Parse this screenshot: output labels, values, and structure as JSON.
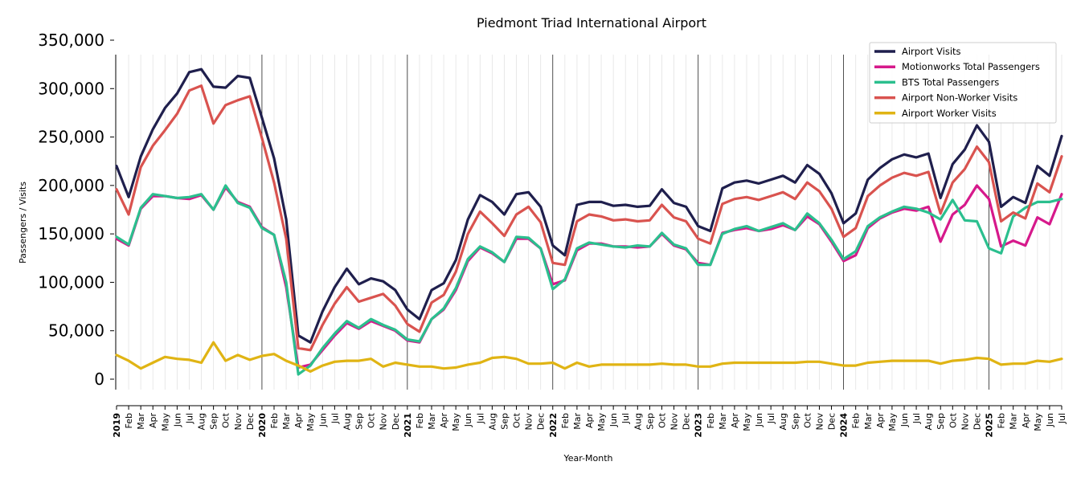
{
  "chart_data": {
    "type": "line",
    "title": "Piedmont Triad International Airport",
    "xlabel": "Year-Month",
    "ylabel": "Passengers / Visits",
    "ylim": [
      0,
      350000
    ],
    "y_ticks": [
      0,
      50000,
      100000,
      150000,
      200000,
      250000,
      300000,
      350000
    ],
    "y_tick_labels": [
      "0",
      "50,000",
      "100,000",
      "150,000",
      "200,000",
      "250,000",
      "300,000",
      "350,000"
    ],
    "grid": "vertical monthly minor gridlines, vertical year separators",
    "legend_position": "top-right",
    "x": [
      "2019-01",
      "2019-02",
      "2019-03",
      "2019-04",
      "2019-05",
      "2019-06",
      "2019-07",
      "2019-08",
      "2019-09",
      "2019-10",
      "2019-11",
      "2019-12",
      "2020-01",
      "2020-02",
      "2020-03",
      "2020-04",
      "2020-05",
      "2020-06",
      "2020-07",
      "2020-08",
      "2020-09",
      "2020-10",
      "2020-11",
      "2020-12",
      "2021-01",
      "2021-02",
      "2021-03",
      "2021-04",
      "2021-05",
      "2021-06",
      "2021-07",
      "2021-08",
      "2021-09",
      "2021-10",
      "2021-11",
      "2021-12",
      "2022-01",
      "2022-02",
      "2022-03",
      "2022-04",
      "2022-05",
      "2022-06",
      "2022-07",
      "2022-08",
      "2022-09",
      "2022-10",
      "2022-11",
      "2022-12",
      "2023-01",
      "2023-02",
      "2023-03",
      "2023-04",
      "2023-05",
      "2023-06",
      "2023-07",
      "2023-08",
      "2023-09",
      "2023-10",
      "2023-11",
      "2023-12",
      "2024-01",
      "2024-02",
      "2024-03",
      "2024-04",
      "2024-05",
      "2024-06",
      "2024-07",
      "2024-08",
      "2024-09",
      "2024-10",
      "2024-11",
      "2024-12",
      "2025-01",
      "2025-02",
      "2025-03",
      "2025-04",
      "2025-05",
      "2025-06",
      "2025-07"
    ],
    "x_tick_labels": [
      "2019",
      "Feb",
      "Mar",
      "Apr",
      "May",
      "Jun",
      "Jul",
      "Aug",
      "Sep",
      "Oct",
      "Nov",
      "Dec",
      "2020",
      "Feb",
      "Mar",
      "Apr",
      "May",
      "Jun",
      "Jul",
      "Aug",
      "Sep",
      "Oct",
      "Nov",
      "Dec",
      "2021",
      "Feb",
      "Mar",
      "Apr",
      "May",
      "Jun",
      "Jul",
      "Aug",
      "Sep",
      "Oct",
      "Nov",
      "Dec",
      "2022",
      "Feb",
      "Mar",
      "Apr",
      "May",
      "Jun",
      "Jul",
      "Aug",
      "Sep",
      "Oct",
      "Nov",
      "Dec",
      "2023",
      "Feb",
      "Mar",
      "Apr",
      "May",
      "Jun",
      "Jul",
      "Aug",
      "Sep",
      "Oct",
      "Nov",
      "Dec",
      "2024",
      "Feb",
      "Mar",
      "Apr",
      "May",
      "Jun",
      "Jul",
      "Aug",
      "Sep",
      "Oct",
      "Nov",
      "Dec",
      "2025",
      "Feb",
      "Mar",
      "Apr",
      "May",
      "Jun",
      "Jul"
    ],
    "series": [
      {
        "name": "Airport Visits",
        "color": "#1f1f4d",
        "values": [
          220000,
          188000,
          230000,
          258000,
          280000,
          295000,
          317000,
          320000,
          302000,
          301000,
          313000,
          311000,
          270000,
          228000,
          165000,
          45000,
          38000,
          70000,
          95000,
          114000,
          98000,
          104000,
          101000,
          92000,
          72000,
          62000,
          92000,
          99000,
          123000,
          165000,
          190000,
          183000,
          170000,
          191000,
          193000,
          178000,
          138000,
          128000,
          180000,
          183000,
          183000,
          179000,
          180000,
          178000,
          179000,
          196000,
          182000,
          178000,
          158000,
          153000,
          197000,
          203000,
          205000,
          202000,
          206000,
          210000,
          203000,
          221000,
          212000,
          192000,
          161000,
          171000,
          206000,
          218000,
          227000,
          232000,
          229000,
          233000,
          187000,
          222000,
          237000,
          262000,
          245000,
          178000,
          188000,
          182000,
          220000,
          210000,
          251000
        ]
      },
      {
        "name": "Motionworks Total Passengers",
        "color": "#d6198b",
        "values": [
          145000,
          138000,
          176000,
          189000,
          189000,
          187000,
          186000,
          190000,
          175000,
          198000,
          183000,
          178000,
          157000,
          149000,
          95000,
          12000,
          15000,
          30000,
          45000,
          58000,
          52000,
          60000,
          55000,
          50000,
          40000,
          38000,
          62000,
          72000,
          92000,
          122000,
          136000,
          130000,
          121000,
          145000,
          145000,
          135000,
          98000,
          102000,
          133000,
          140000,
          140000,
          137000,
          137000,
          136000,
          137000,
          150000,
          138000,
          134000,
          120000,
          118000,
          151000,
          154000,
          156000,
          153000,
          155000,
          159000,
          154000,
          168000,
          160000,
          142000,
          122000,
          128000,
          156000,
          166000,
          172000,
          176000,
          174000,
          178000,
          142000,
          170000,
          180000,
          200000,
          186000,
          137000,
          143000,
          138000,
          167000,
          160000,
          191000
        ]
      },
      {
        "name": "BTS Total Passengers",
        "color": "#2bbf8e",
        "values": [
          147000,
          139000,
          177000,
          191000,
          189000,
          187000,
          188000,
          191000,
          175000,
          200000,
          182000,
          177000,
          156000,
          149000,
          100000,
          5000,
          14000,
          32000,
          47000,
          60000,
          53000,
          62000,
          56000,
          51000,
          41000,
          39000,
          62000,
          73000,
          94000,
          124000,
          137000,
          131000,
          121000,
          147000,
          146000,
          135000,
          93000,
          103000,
          135000,
          141000,
          139000,
          137000,
          136000,
          138000,
          137000,
          151000,
          139000,
          135000,
          118000,
          118000,
          150000,
          155000,
          158000,
          153000,
          157000,
          161000,
          154000,
          171000,
          161000,
          144000,
          124000,
          132000,
          158000,
          167000,
          173000,
          178000,
          176000,
          172000,
          165000,
          185000,
          164000,
          163000,
          135000,
          130000,
          168000,
          177000,
          183000,
          183000,
          186000
        ]
      },
      {
        "name": "Airport Non-Worker Visits",
        "color": "#d9534f",
        "values": [
          196000,
          170000,
          219000,
          241000,
          257000,
          274000,
          298000,
          303000,
          264000,
          283000,
          288000,
          292000,
          249000,
          203000,
          145000,
          32000,
          30000,
          56000,
          78000,
          95000,
          80000,
          84000,
          88000,
          76000,
          57000,
          49000,
          79000,
          87000,
          111000,
          150000,
          173000,
          161000,
          148000,
          170000,
          178000,
          162000,
          120000,
          118000,
          163000,
          170000,
          168000,
          164000,
          165000,
          163000,
          164000,
          180000,
          167000,
          163000,
          145000,
          140000,
          181000,
          186000,
          188000,
          185000,
          189000,
          193000,
          186000,
          203000,
          194000,
          176000,
          147000,
          156000,
          189000,
          200000,
          208000,
          213000,
          210000,
          214000,
          171000,
          203000,
          217000,
          240000,
          224000,
          163000,
          172000,
          166000,
          202000,
          193000,
          230000
        ]
      },
      {
        "name": "Airport Worker Visits",
        "color": "#e0b414",
        "values": [
          25000,
          19000,
          11000,
          17000,
          23000,
          21000,
          20000,
          17000,
          38000,
          19000,
          25000,
          20000,
          24000,
          26000,
          19000,
          14000,
          8000,
          14000,
          18000,
          19000,
          19000,
          21000,
          13000,
          17000,
          15000,
          13000,
          13000,
          11000,
          12000,
          15000,
          17000,
          22000,
          23000,
          21000,
          16000,
          16000,
          17000,
          11000,
          17000,
          13000,
          15000,
          15000,
          15000,
          15000,
          15000,
          16000,
          15000,
          15000,
          13000,
          13000,
          16000,
          17000,
          17000,
          17000,
          17000,
          17000,
          17000,
          18000,
          18000,
          16000,
          14000,
          14000,
          17000,
          18000,
          19000,
          19000,
          19000,
          19000,
          16000,
          19000,
          20000,
          22000,
          21000,
          15000,
          16000,
          16000,
          19000,
          18000,
          21000
        ]
      }
    ]
  }
}
